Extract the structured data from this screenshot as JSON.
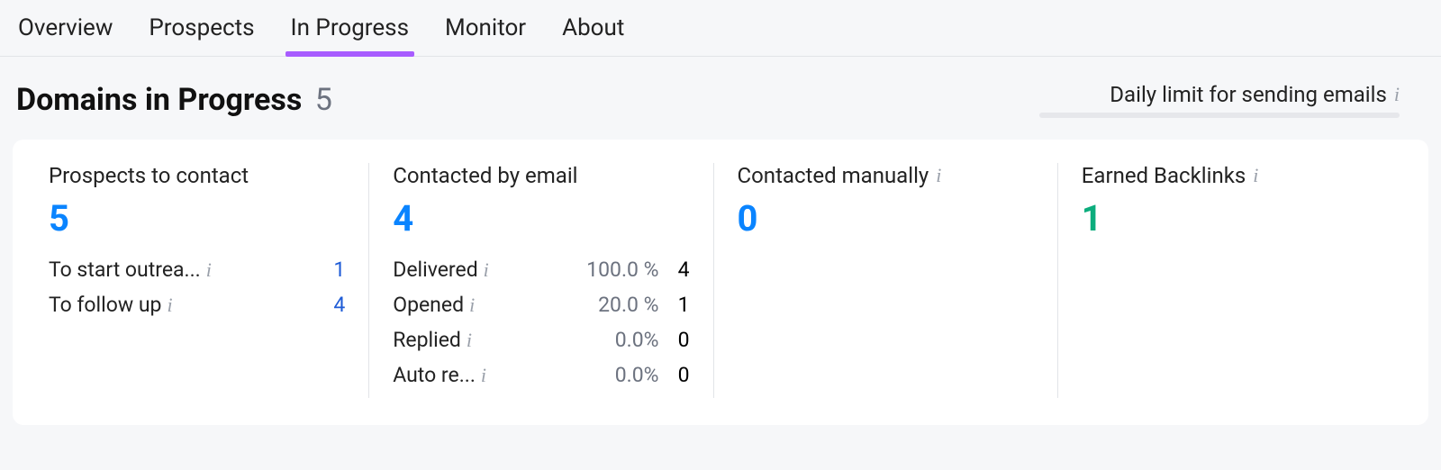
{
  "colors": {
    "accent_purple": "#a85cff",
    "stat_blue": "#0a84ff",
    "stat_green": "#0cad7d",
    "link_blue": "#1f5cd6",
    "muted": "#6c727f",
    "divider": "#e2e4e8",
    "page_bg": "#f6f7f9"
  },
  "tabs": {
    "items": [
      {
        "label": "Overview",
        "active": false
      },
      {
        "label": "Prospects",
        "active": false
      },
      {
        "label": "In Progress",
        "active": true
      },
      {
        "label": "Monitor",
        "active": false
      },
      {
        "label": "About",
        "active": false
      }
    ]
  },
  "header": {
    "title": "Domains in Progress",
    "count": "5",
    "daily_limit_label": "Daily limit for sending emails"
  },
  "panels": {
    "prospects": {
      "title": "Prospects to contact",
      "value": "5",
      "rows": [
        {
          "label": "To start outrea...",
          "has_info": true,
          "value": "1"
        },
        {
          "label": "To follow up",
          "has_info": true,
          "value": "4"
        }
      ]
    },
    "email": {
      "title": "Contacted by email",
      "value": "4",
      "rows": [
        {
          "label": "Delivered",
          "has_info": true,
          "pct": "100.0 %",
          "value": "4"
        },
        {
          "label": "Opened",
          "has_info": true,
          "pct": "20.0 %",
          "value": "1"
        },
        {
          "label": "Replied",
          "has_info": true,
          "pct": "0.0%",
          "value": "0"
        },
        {
          "label": "Auto re...",
          "has_info": true,
          "pct": "0.0%",
          "value": "0"
        }
      ]
    },
    "manual": {
      "title": "Contacted manually",
      "has_info": true,
      "value": "0"
    },
    "backlinks": {
      "title": "Earned Backlinks",
      "has_info": true,
      "value": "1"
    }
  }
}
